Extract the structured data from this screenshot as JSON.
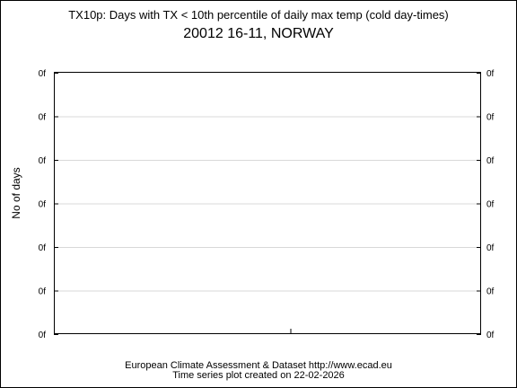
{
  "chart_data": {
    "type": "line",
    "title": "TX10p: Days with TX < 10th percentile of daily max temp (cold day-times)",
    "subtitle": "20012 16-11, NORWAY",
    "xlabel": "",
    "ylabel": "No of days",
    "y_tick_labels": [
      "0f",
      "0f",
      "0f",
      "0f",
      "0f",
      "0f",
      "0f"
    ],
    "grid": true,
    "series": []
  },
  "footer": {
    "line1": "European Climate Assessment & Dataset  http://www.ecad.eu",
    "line2": "Time series plot created on 22-02-2026"
  }
}
